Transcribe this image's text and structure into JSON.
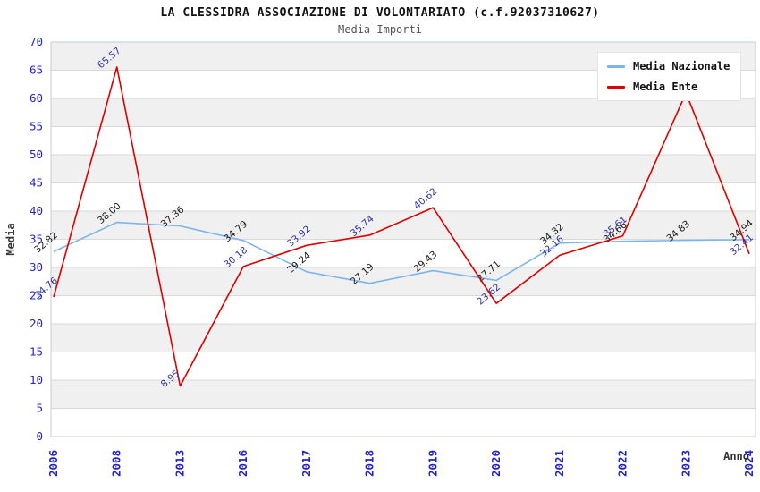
{
  "chart_data": {
    "type": "line",
    "title": "LA CLESSIDRA ASSOCIAZIONE DI VOLONTARIATO (c.f.92037310627)",
    "subtitle": "Media Importi",
    "xlabel": "Anno",
    "ylabel": "Media",
    "ylim": [
      0,
      70
    ],
    "ytick_step": 5,
    "grid": "horizontal-bands",
    "legend_position": "top-right",
    "categories": [
      "2006",
      "2008",
      "2013",
      "2016",
      "2017",
      "2018",
      "2019",
      "2020",
      "2021",
      "2022",
      "2023",
      "2024"
    ],
    "series": [
      {
        "name": "Media Nazionale",
        "color": "#7cb5ec",
        "label_color": "#1a1a1a",
        "values": [
          32.82,
          38.0,
          37.36,
          34.79,
          29.24,
          27.19,
          29.43,
          27.71,
          34.32,
          34.66,
          34.83,
          34.94
        ],
        "labels": [
          "32.82",
          "38.00",
          "37.36",
          "34.79",
          "29.24",
          "27.19",
          "29.43",
          "27.71",
          "34.32",
          "34.66",
          "34.83",
          "34.94"
        ]
      },
      {
        "name": "Media Ente",
        "color": "#dd0000",
        "label_color": "#3333a0",
        "values": [
          24.76,
          65.57,
          8.95,
          30.18,
          33.92,
          35.74,
          40.62,
          23.62,
          32.16,
          35.61,
          61.0,
          32.41
        ],
        "labels": [
          "24.76",
          "65.57",
          "8.95",
          "30.18",
          "33.92",
          "35.74",
          "40.62",
          "23.62",
          "32.16",
          "35.61",
          "",
          "32.41"
        ]
      }
    ],
    "colors": {
      "tick_label": "#2222cc",
      "axis_title": "#333333",
      "band_gray": "#f0f0f0",
      "band_white": "#ffffff",
      "gridline": "#d9d9d9",
      "plot_border": "#c5ccd6"
    }
  }
}
